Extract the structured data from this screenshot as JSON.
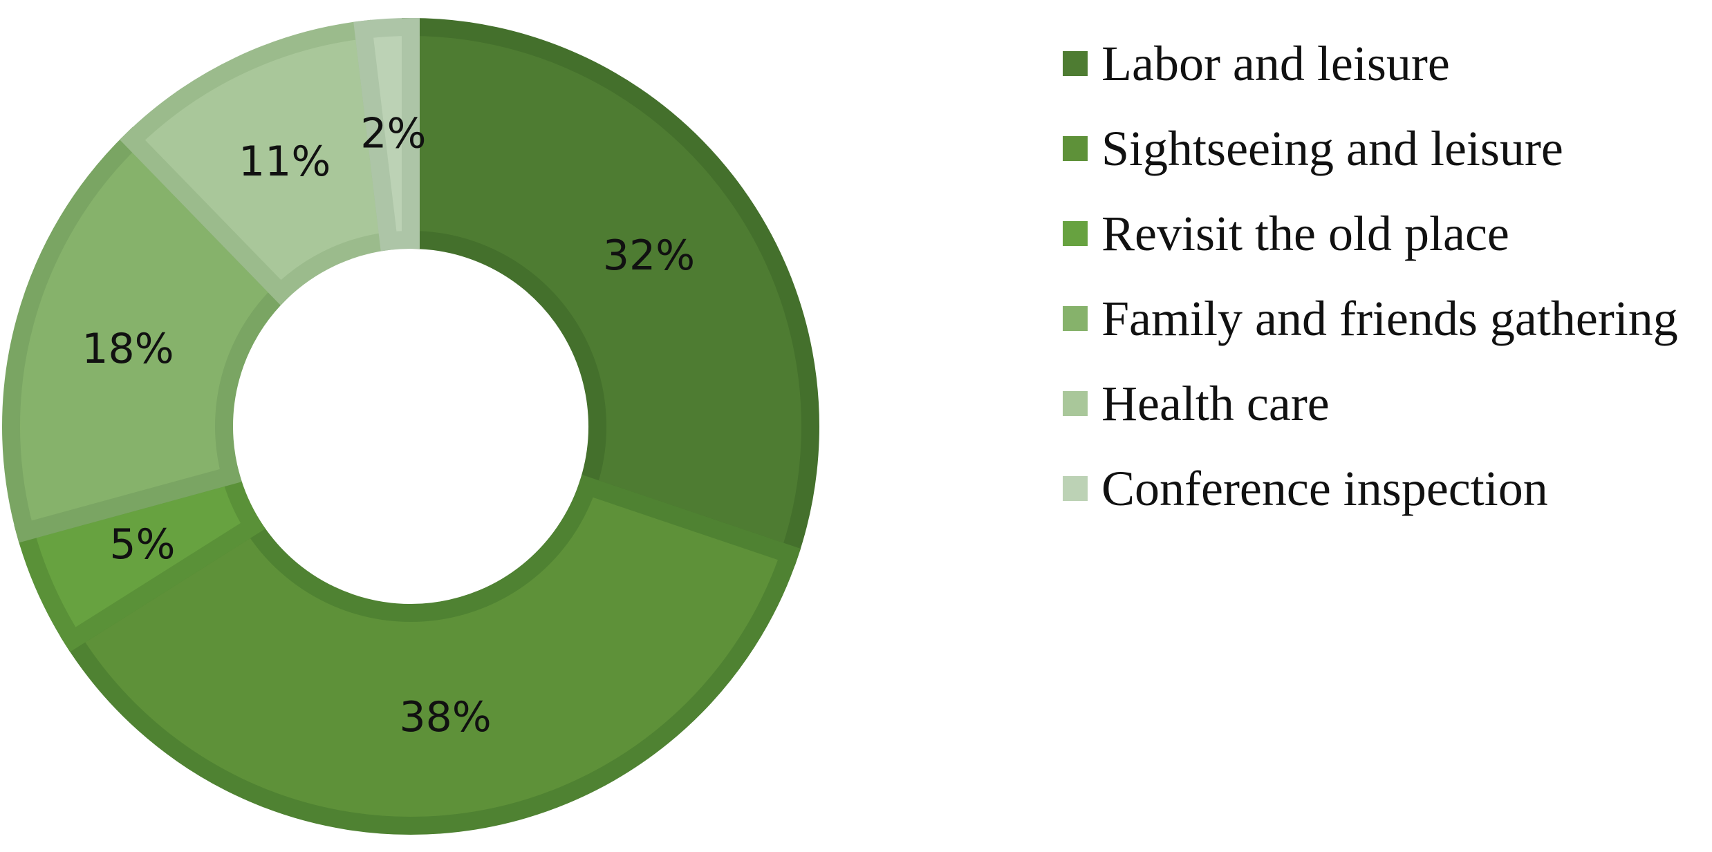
{
  "chart_data": {
    "type": "pie",
    "variant": "donut",
    "categories": [
      "Labor and leisure",
      "Sightseeing and leisure",
      "Revisit the old place",
      "Family and friends gathering",
      "Health care",
      "Conference inspection"
    ],
    "values": [
      32,
      38,
      5,
      18,
      11,
      2
    ],
    "labels": [
      "32%",
      "38%",
      "5%",
      "18%",
      "11%",
      "2%"
    ],
    "colors": [
      "#4e7c32",
      "#5e9139",
      "#67a240",
      "#86b26b",
      "#a9c79a",
      "#bcd2b5"
    ],
    "border_colors": [
      "#44702c",
      "#4f8232",
      "#5a9138",
      "#7aa563",
      "#9bbb8c",
      "#adc5a7"
    ],
    "legend_position": "right",
    "start_angle": "top",
    "direction": "clockwise"
  }
}
